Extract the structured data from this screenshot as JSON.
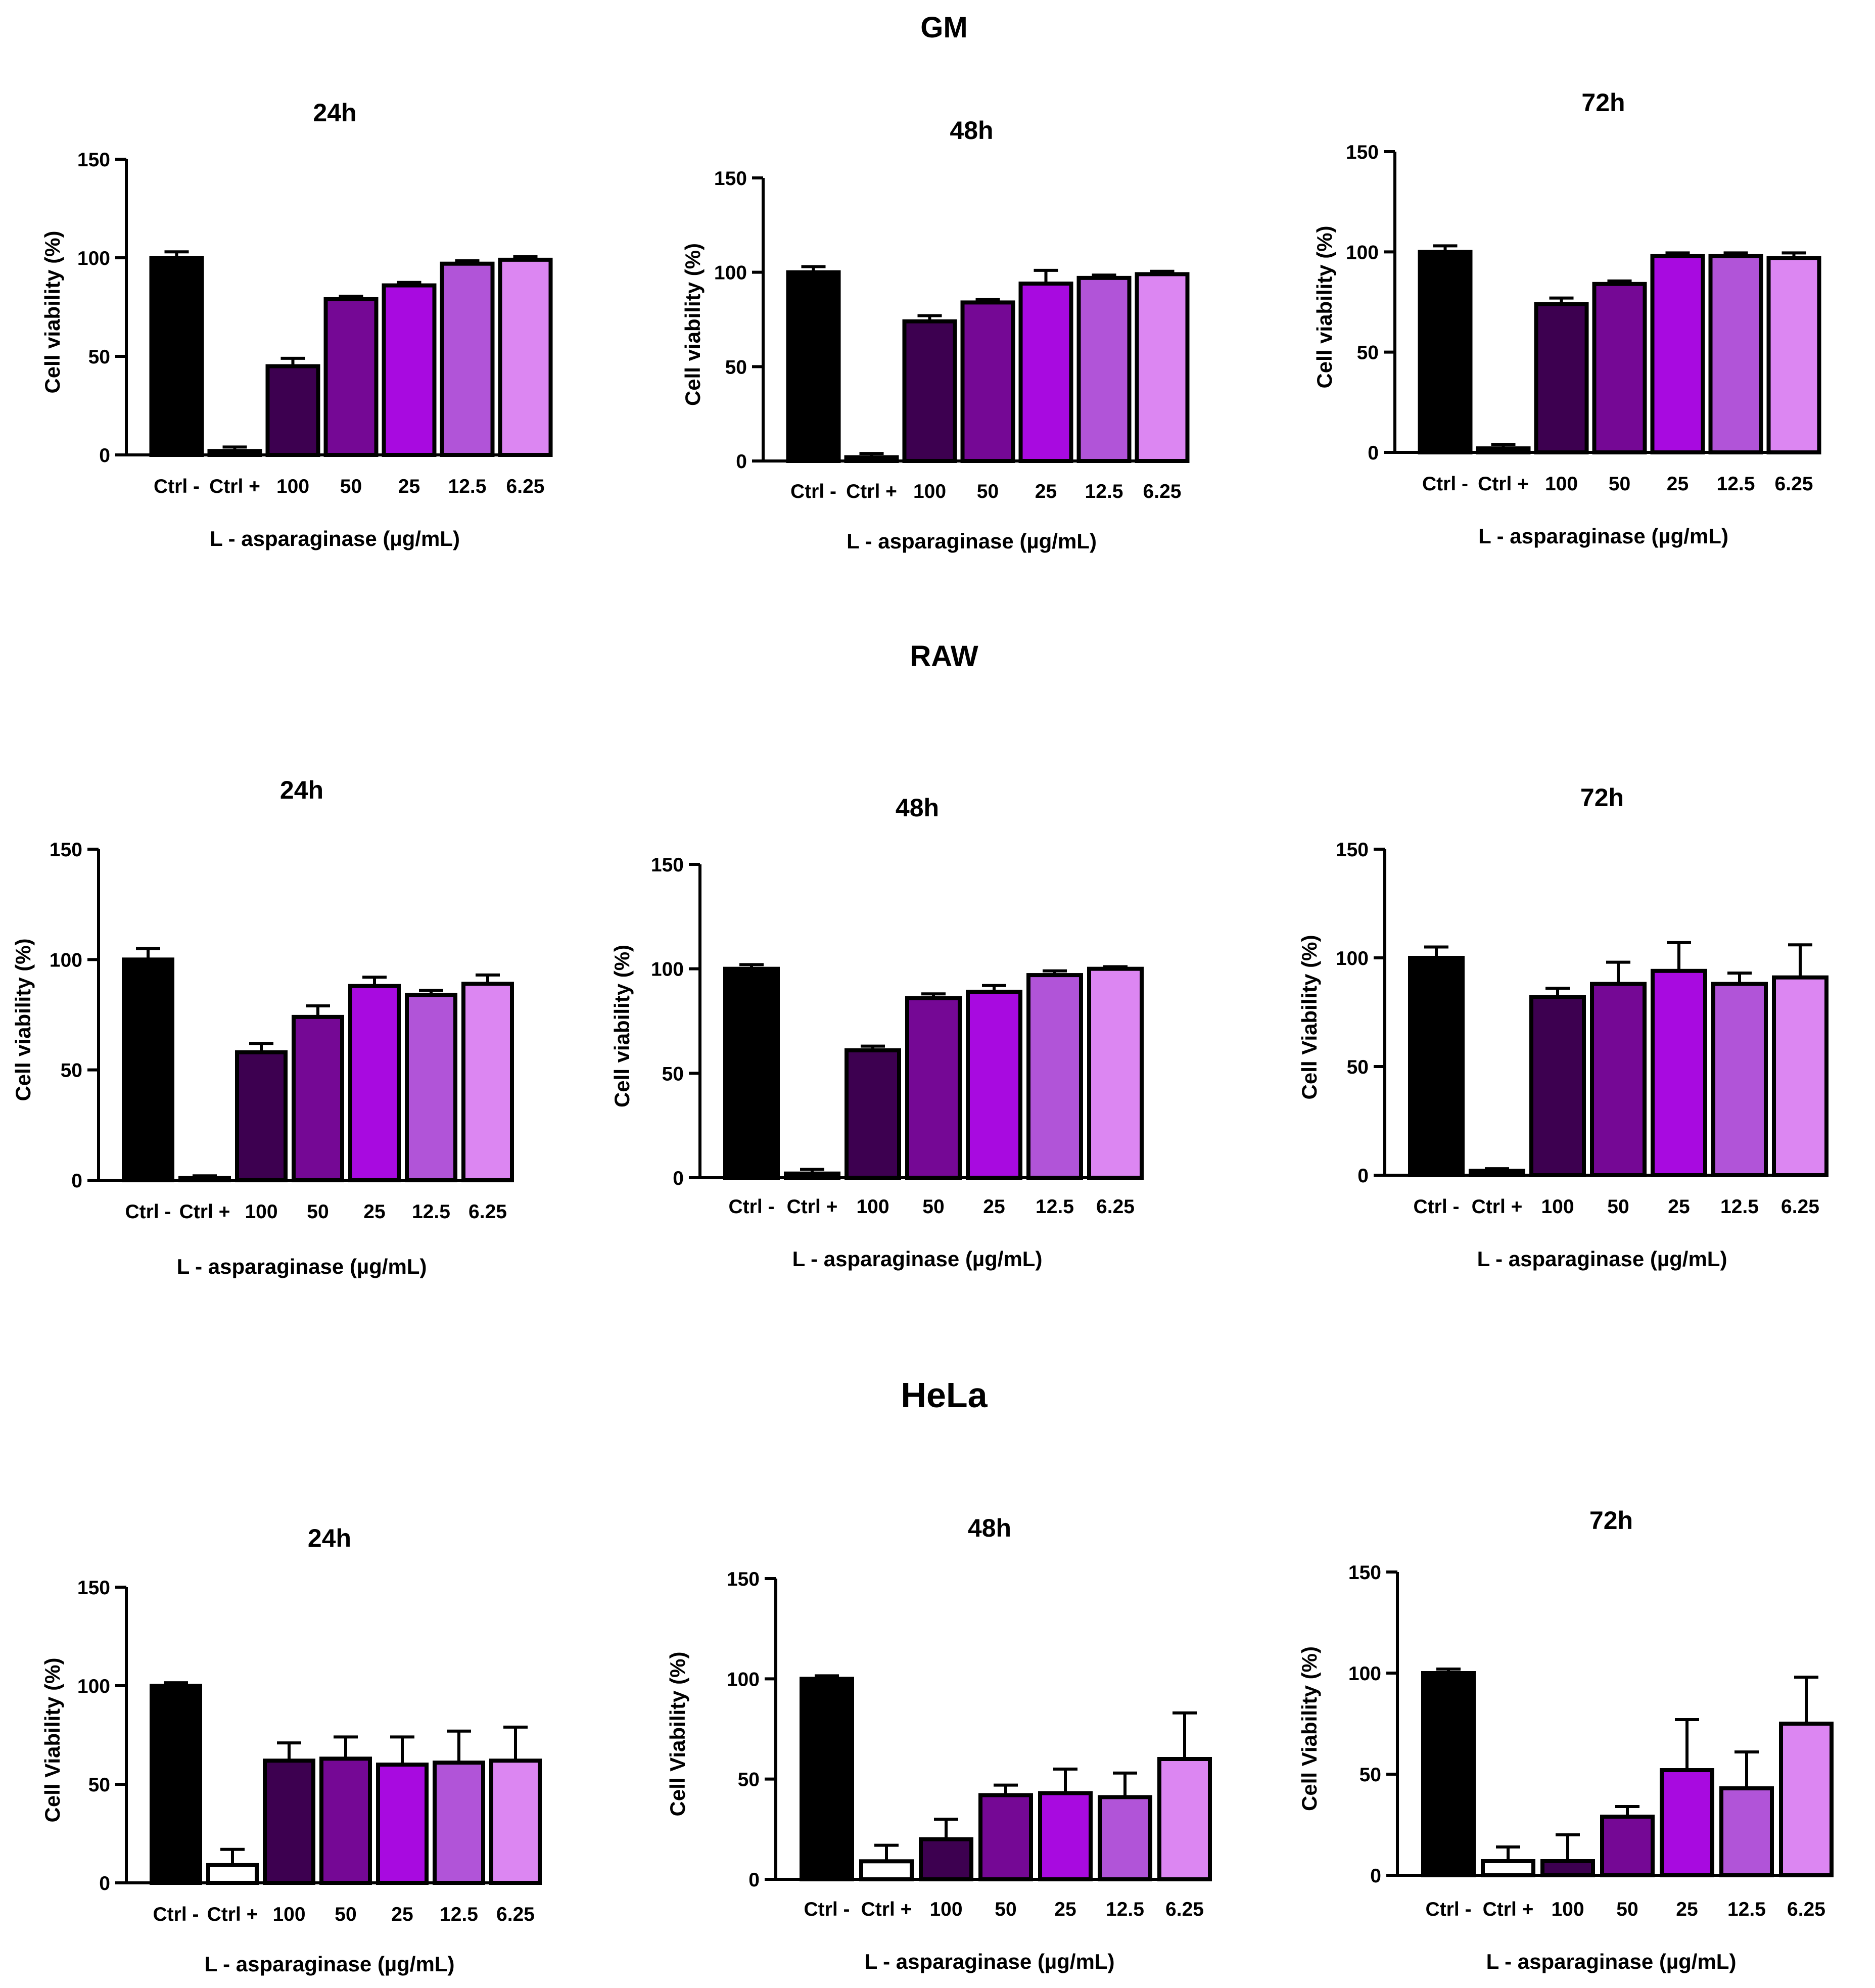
{
  "colors": [
    "#000000",
    "#ffffff",
    "#3d0050",
    "#750895",
    "#a80ae0",
    "#b154d8",
    "#dc86f2"
  ],
  "chart_data": [
    {
      "type": "bar",
      "group": "GM",
      "title": "24h",
      "ylabel": "Cell viability (%)",
      "xlabel": "L - asparaginase (µg/mL)",
      "categories": [
        "Ctrl -",
        "Ctrl +",
        "100",
        "50",
        "25",
        "12.5",
        "6.25"
      ],
      "values": [
        100,
        2,
        45,
        79,
        86,
        97,
        99
      ],
      "errors": [
        3,
        2,
        4,
        1.5,
        1.5,
        1.5,
        1.5
      ],
      "ylim": [
        0,
        150
      ],
      "yticks": [
        0,
        50,
        100,
        150
      ],
      "ctrl_plus_color": "#000000"
    },
    {
      "type": "bar",
      "group": "GM",
      "title": "48h",
      "ylabel": "Cell viability (%)",
      "xlabel": "L - asparaginase (µg/mL)",
      "categories": [
        "Ctrl -",
        "Ctrl +",
        "100",
        "50",
        "25",
        "12.5",
        "6.25"
      ],
      "values": [
        100,
        2,
        74,
        84,
        94,
        97,
        99
      ],
      "errors": [
        3,
        2,
        3,
        1.5,
        7,
        1.5,
        1.5
      ],
      "ylim": [
        0,
        150
      ],
      "yticks": [
        0,
        50,
        100,
        150
      ],
      "ctrl_plus_color": "#000000"
    },
    {
      "type": "bar",
      "group": "GM",
      "title": "72h",
      "ylabel": "Cell viability (%)",
      "xlabel": "L - asparaginase (µg/mL)",
      "categories": [
        "Ctrl -",
        "Ctrl +",
        "100",
        "50",
        "25",
        "12.5",
        "6.25"
      ],
      "values": [
        100,
        2,
        74,
        84,
        98,
        98,
        97
      ],
      "errors": [
        3,
        2,
        3,
        1.5,
        1.5,
        1.5,
        2.5
      ],
      "ylim": [
        0,
        150
      ],
      "yticks": [
        0,
        50,
        100,
        150
      ],
      "ctrl_plus_color": "#000000"
    },
    {
      "type": "bar",
      "group": "RAW",
      "title": "24h",
      "ylabel": "Cell viability (%)",
      "xlabel": "L - asparaginase (µg/mL)",
      "categories": [
        "Ctrl -",
        "Ctrl +",
        "100",
        "50",
        "25",
        "12.5",
        "6.25"
      ],
      "values": [
        100,
        1,
        58,
        74,
        88,
        84,
        89
      ],
      "errors": [
        5,
        1,
        4,
        5,
        4,
        2,
        4
      ],
      "ylim": [
        0,
        150
      ],
      "yticks": [
        0,
        50,
        100,
        150
      ],
      "ctrl_plus_color": "#000000"
    },
    {
      "type": "bar",
      "group": "RAW",
      "title": "48h",
      "ylabel": "Cell viability (%)",
      "xlabel": "L - asparaginase (µg/mL)",
      "categories": [
        "Ctrl -",
        "Ctrl +",
        "100",
        "50",
        "25",
        "12.5",
        "6.25"
      ],
      "values": [
        100,
        2,
        61,
        86,
        89,
        97,
        100
      ],
      "errors": [
        2,
        2,
        2,
        2,
        3,
        2,
        1
      ],
      "ylim": [
        0,
        150
      ],
      "yticks": [
        0,
        50,
        100,
        150
      ],
      "ctrl_plus_color": "#000000"
    },
    {
      "type": "bar",
      "group": "RAW",
      "title": "72h",
      "ylabel": "Cell Viability (%)",
      "xlabel": "L - asparaginase (µg/mL)",
      "categories": [
        "Ctrl -",
        "Ctrl +",
        "100",
        "50",
        "25",
        "12.5",
        "6.25"
      ],
      "values": [
        100,
        2,
        82,
        88,
        94,
        88,
        91
      ],
      "errors": [
        5,
        1,
        4,
        10,
        13,
        5,
        15
      ],
      "ylim": [
        0,
        150
      ],
      "yticks": [
        0,
        50,
        100,
        150
      ],
      "ctrl_plus_color": "#000000"
    },
    {
      "type": "bar",
      "group": "HeLa",
      "title": "24h",
      "ylabel": "Cell Viability (%)",
      "xlabel": "L - asparaginase (µg/mL)",
      "categories": [
        "Ctrl -",
        "Ctrl +",
        "100",
        "50",
        "25",
        "12.5",
        "6.25"
      ],
      "values": [
        100,
        9,
        62,
        63,
        60,
        61,
        62
      ],
      "errors": [
        1.5,
        8,
        9,
        11,
        14,
        16,
        17
      ],
      "ylim": [
        0,
        150
      ],
      "yticks": [
        0,
        50,
        100,
        150
      ],
      "ctrl_plus_color": "#ffffff"
    },
    {
      "type": "bar",
      "group": "HeLa",
      "title": "48h",
      "ylabel": "Cell Viability (%)",
      "xlabel": "L - asparaginase (µg/mL)",
      "categories": [
        "Ctrl -",
        "Ctrl +",
        "100",
        "50",
        "25",
        "12.5",
        "6.25"
      ],
      "values": [
        100,
        9,
        20,
        42,
        43,
        41,
        60
      ],
      "errors": [
        1.5,
        8,
        10,
        5,
        12,
        12,
        23
      ],
      "ylim": [
        0,
        150
      ],
      "yticks": [
        0,
        50,
        100,
        150
      ],
      "ctrl_plus_color": "#ffffff"
    },
    {
      "type": "bar",
      "group": "HeLa",
      "title": "72h",
      "ylabel": "Cell Viability (%)",
      "xlabel": "L - asparaginase (µg/mL)",
      "categories": [
        "Ctrl -",
        "Ctrl +",
        "100",
        "50",
        "25",
        "12.5",
        "6.25"
      ],
      "values": [
        100,
        7,
        7,
        29,
        52,
        43,
        75
      ],
      "errors": [
        2,
        7,
        13,
        5,
        25,
        18,
        23
      ],
      "ylim": [
        0,
        150
      ],
      "yticks": [
        0,
        50,
        100,
        150
      ],
      "ctrl_plus_color": "#ffffff"
    }
  ],
  "row_titles": [
    "GM",
    "RAW",
    "HeLa"
  ]
}
